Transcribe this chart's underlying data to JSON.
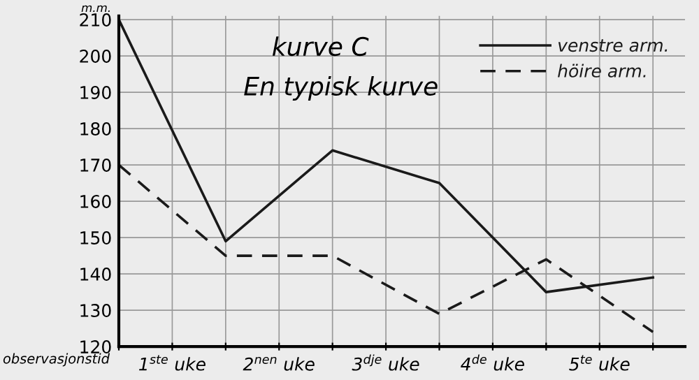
{
  "chart_data": {
    "type": "line",
    "title": "kurve C",
    "subtitle": "En typisk kurve",
    "ylabel": "m.m.",
    "xlabel": "observasjonstid",
    "x": [
      0,
      1,
      2,
      3,
      4,
      5
    ],
    "series": [
      {
        "name": "venstre arm.",
        "color": "#1a1a1a",
        "values": [
          210,
          149,
          174,
          165,
          135,
          139
        ],
        "line_style": "solid"
      },
      {
        "name": "höire arm.",
        "color": "#1a1a1a",
        "values": [
          170,
          145,
          145,
          129,
          144,
          124
        ],
        "line_style": "dashed"
      }
    ],
    "xlim": [
      0,
      5.3
    ],
    "ylim": [
      120,
      211
    ],
    "yticks": [
      120,
      130,
      140,
      150,
      160,
      170,
      180,
      190,
      200,
      210
    ],
    "xticks": [
      {
        "value": 0,
        "label": null
      },
      {
        "value": 0.5,
        "label": "1$^{ste}$ uke"
      },
      {
        "value": 1,
        "label": null
      },
      {
        "value": 1.5,
        "label": "2$^{nen}$ uke"
      },
      {
        "value": 2,
        "label": null
      },
      {
        "value": 2.5,
        "label": "3$^{dje}$ uke"
      },
      {
        "value": 3,
        "label": null
      },
      {
        "value": 3.5,
        "label": "4$^{de}$ uke"
      },
      {
        "value": 4,
        "label": null
      },
      {
        "value": 4.5,
        "label": "5$^{te}$ uke"
      },
      {
        "value": 5,
        "label": null
      }
    ],
    "grid": true,
    "legend": "top right",
    "marker": "none"
  }
}
